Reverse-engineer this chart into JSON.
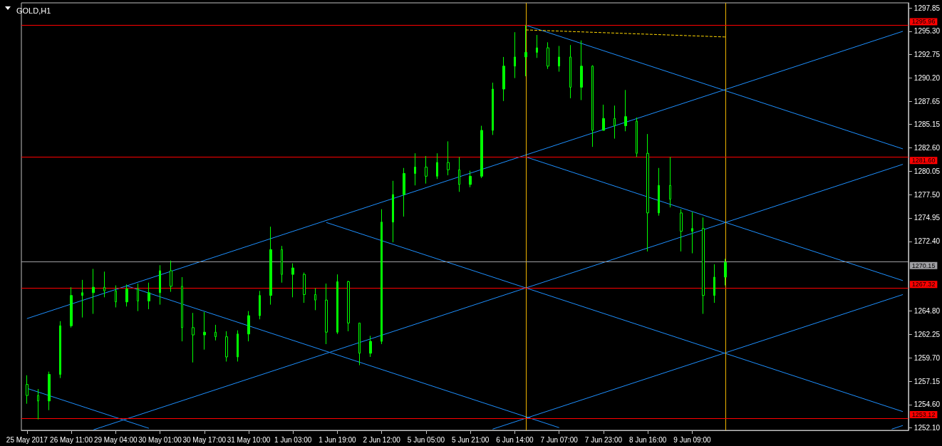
{
  "chart_data": {
    "type": "candlestick",
    "title": "GOLD,H1",
    "color": "#00ff00",
    "categories": [
      "25 May 2017",
      null,
      null,
      null,
      "26 May 11:00",
      null,
      null,
      null,
      "29 May 04:00",
      null,
      null,
      null,
      "30 May 01:00",
      null,
      null,
      null,
      "30 May 17:00",
      null,
      null,
      null,
      "31 May 10:00",
      null,
      null,
      null,
      "1 Jun 03:00",
      null,
      null,
      null,
      "1 Jun 19:00",
      null,
      null,
      null,
      "2 Jun 12:00",
      null,
      null,
      null,
      "5 Jun 05:00",
      null,
      null,
      null,
      "5 Jun 21:00",
      null,
      null,
      null,
      "6 Jun 14:00",
      null,
      null,
      null,
      "7 Jun 07:00",
      null,
      null,
      null,
      "7 Jun 23:00",
      null,
      null,
      null,
      "8 Jun 16:00",
      null,
      null,
      null,
      "9 Jun 09:00",
      null,
      null,
      null,
      null,
      null,
      null,
      null,
      null,
      null,
      null,
      null,
      null,
      null,
      null,
      null,
      null,
      null,
      null,
      null
    ],
    "ohlc": [
      [
        1256.8,
        1257.8,
        1254.7,
        1255.6
      ],
      [
        1255.6,
        1256.3,
        1253.0,
        1255.0
      ],
      [
        1255.0,
        1258.2,
        1254.0,
        1257.9
      ],
      [
        1257.9,
        1263.7,
        1257.5,
        1263.2
      ],
      [
        1263.2,
        1267.4,
        1263.0,
        1266.5
      ],
      [
        1266.5,
        1268.2,
        1264.1,
        1266.8
      ],
      [
        1266.8,
        1269.4,
        1264.5,
        1267.4
      ],
      [
        1267.4,
        1269.1,
        1266.3,
        1267.0
      ],
      [
        1267.0,
        1267.6,
        1265.2,
        1265.8
      ],
      [
        1265.8,
        1267.7,
        1265.3,
        1267.2
      ],
      [
        1267.2,
        1267.8,
        1264.8,
        1265.9
      ],
      [
        1265.9,
        1267.9,
        1265.0,
        1266.8
      ],
      [
        1266.8,
        1269.8,
        1265.5,
        1269.2
      ],
      [
        1269.2,
        1270.3,
        1266.9,
        1267.5
      ],
      [
        1267.5,
        1268.5,
        1261.5,
        1263.0
      ],
      [
        1263.0,
        1264.6,
        1259.2,
        1262.2
      ],
      [
        1262.2,
        1264.7,
        1260.6,
        1262.5
      ],
      [
        1262.5,
        1263.3,
        1261.6,
        1262.0
      ],
      [
        1262.0,
        1262.6,
        1259.3,
        1259.8
      ],
      [
        1259.8,
        1262.7,
        1259.3,
        1262.3
      ],
      [
        1262.3,
        1264.8,
        1261.5,
        1264.3
      ],
      [
        1264.3,
        1267.0,
        1263.9,
        1266.5
      ],
      [
        1266.5,
        1274.0,
        1265.5,
        1271.5
      ],
      [
        1271.5,
        1271.9,
        1267.9,
        1268.8
      ],
      [
        1268.8,
        1270.0,
        1266.3,
        1269.5
      ],
      [
        1268.8,
        1269.0,
        1265.7,
        1266.6
      ],
      [
        1266.6,
        1267.3,
        1264.9,
        1266.0
      ],
      [
        1266.0,
        1267.8,
        1261.2,
        1262.5
      ],
      [
        1262.5,
        1268.8,
        1262.3,
        1268.0
      ],
      [
        1268.0,
        1268.1,
        1262.6,
        1263.5
      ],
      [
        1263.5,
        1263.5,
        1258.9,
        1260.2
      ],
      [
        1260.2,
        1262.1,
        1259.8,
        1261.5
      ],
      [
        1261.5,
        1275.9,
        1261.2,
        1274.5
      ],
      [
        1274.5,
        1279.0,
        1272.3,
        1277.5
      ],
      [
        1277.5,
        1280.4,
        1275.1,
        1279.8
      ],
      [
        1279.8,
        1282.0,
        1278.5,
        1280.5
      ],
      [
        1280.5,
        1281.7,
        1278.7,
        1279.5
      ],
      [
        1279.5,
        1282.0,
        1279.2,
        1281.0
      ],
      [
        1281.0,
        1283.3,
        1279.6,
        1280.2
      ],
      [
        1280.2,
        1281.6,
        1277.8,
        1278.6
      ],
      [
        1278.6,
        1280.1,
        1278.3,
        1279.5
      ],
      [
        1279.5,
        1285.0,
        1279.3,
        1284.5
      ],
      [
        1284.5,
        1289.7,
        1284.0,
        1289.0
      ],
      [
        1289.0,
        1292.5,
        1287.7,
        1291.5
      ],
      [
        1291.5,
        1295.2,
        1290.2,
        1292.5
      ],
      [
        1292.5,
        1296.0,
        1290.4,
        1293.0
      ],
      [
        1293.0,
        1294.9,
        1292.4,
        1293.5
      ],
      [
        1293.5,
        1294.1,
        1291.2,
        1291.5
      ],
      [
        1291.5,
        1293.7,
        1290.9,
        1292.5
      ],
      [
        1292.5,
        1293.8,
        1288.0,
        1289.2
      ],
      [
        1289.2,
        1294.3,
        1287.8,
        1291.5
      ],
      [
        1291.5,
        1291.6,
        1282.7,
        1284.5
      ],
      [
        1284.5,
        1287.3,
        1284.5,
        1285.8
      ],
      [
        1285.8,
        1287.2,
        1283.6,
        1285.0
      ],
      [
        1285.0,
        1288.9,
        1284.4,
        1286.0
      ],
      [
        1285.5,
        1285.9,
        1281.6,
        1282.0
      ],
      [
        1282.0,
        1284.1,
        1271.3,
        1275.5
      ],
      [
        1275.5,
        1280.4,
        1275.2,
        1278.5
      ],
      [
        1278.5,
        1281.6,
        1276.1,
        1277.0
      ],
      [
        1275.5,
        1275.9,
        1271.3,
        1273.5
      ],
      [
        1273.5,
        1275.6,
        1271.1,
        1273.8
      ],
      [
        1273.8,
        1275.0,
        1264.5,
        1266.5
      ],
      [
        1266.5,
        1269.9,
        1265.7,
        1268.5
      ],
      [
        1268.5,
        1270.5,
        1267.6,
        1270.1
      ],
      null,
      null,
      null,
      null,
      null,
      null,
      null,
      null,
      null,
      null,
      null,
      null,
      null,
      null,
      null,
      null
    ],
    "series": [
      {
        "type": "line",
        "color": "#1e90ff",
        "values": [
          1263.98,
          null,
          null,
          null,
          null,
          null,
          null,
          null,
          null,
          null,
          null,
          null,
          null,
          null,
          null,
          null,
          null,
          null,
          null,
          null,
          null,
          null,
          null,
          null,
          null,
          null,
          null,
          null,
          null,
          null,
          null,
          null,
          null,
          null,
          null,
          null,
          null,
          null,
          null,
          null,
          null,
          null,
          null,
          null,
          null,
          null,
          null,
          null,
          null,
          null,
          null,
          null,
          null,
          null,
          null,
          null,
          null,
          null,
          null,
          null,
          null,
          null,
          null,
          null,
          null,
          null,
          null,
          null,
          null,
          null,
          null,
          null,
          null,
          null,
          null,
          null,
          null,
          null,
          null,
          1295.3
        ]
      },
      {
        "type": "line",
        "color": "#1e90ff",
        "values": [
          null,
          null,
          null,
          null,
          null,
          null,
          1251.86,
          null,
          null,
          null,
          null,
          null,
          null,
          null,
          null,
          null,
          null,
          null,
          null,
          null,
          null,
          null,
          null,
          null,
          null,
          null,
          null,
          null,
          null,
          null,
          null,
          null,
          null,
          null,
          null,
          null,
          null,
          null,
          null,
          null,
          null,
          null,
          null,
          null,
          null,
          null,
          null,
          null,
          null,
          null,
          null,
          null,
          null,
          null,
          null,
          null,
          null,
          null,
          null,
          null,
          null,
          null,
          null,
          null,
          null,
          null,
          null,
          null,
          null,
          null,
          null,
          null,
          null,
          null,
          null,
          null,
          null,
          null,
          null,
          1280.8
        ]
      },
      {
        "type": "line",
        "color": "#1e90ff",
        "values": [
          null,
          null,
          null,
          null,
          null,
          null,
          null,
          null,
          null,
          null,
          null,
          null,
          null,
          null,
          null,
          null,
          null,
          null,
          null,
          null,
          null,
          null,
          null,
          null,
          null,
          null,
          null,
          null,
          null,
          null,
          null,
          null,
          null,
          null,
          null,
          null,
          null,
          null,
          null,
          null,
          null,
          null,
          1251.93,
          null,
          null,
          null,
          null,
          null,
          null,
          null,
          null,
          null,
          null,
          null,
          null,
          null,
          null,
          null,
          null,
          null,
          null,
          null,
          null,
          null,
          null,
          null,
          null,
          null,
          null,
          null,
          null,
          null,
          null,
          null,
          null,
          null,
          null,
          null,
          null,
          1266.6
        ]
      },
      {
        "type": "line",
        "color": "#1e90ff",
        "values": [
          null,
          null,
          null,
          null,
          null,
          null,
          null,
          null,
          null,
          null,
          null,
          null,
          null,
          null,
          null,
          null,
          null,
          null,
          null,
          null,
          null,
          null,
          null,
          null,
          null,
          null,
          null,
          null,
          null,
          null,
          null,
          null,
          null,
          null,
          null,
          null,
          null,
          null,
          null,
          null,
          null,
          null,
          null,
          null,
          null,
          null,
          null,
          null,
          null,
          null,
          null,
          null,
          null,
          null,
          null,
          null,
          null,
          null,
          null,
          null,
          null,
          null,
          null,
          null,
          null,
          null,
          null,
          null,
          null,
          null,
          null,
          null,
          null,
          null,
          null,
          null,
          null,
          null,
          1251.93,
          1252.33
        ]
      },
      {
        "type": "line",
        "color": "#1e90ff",
        "values": [
          null,
          null,
          null,
          null,
          null,
          null,
          null,
          null,
          null,
          null,
          null,
          null,
          null,
          null,
          null,
          null,
          null,
          null,
          null,
          null,
          null,
          null,
          null,
          null,
          null,
          null,
          null,
          null,
          null,
          null,
          null,
          null,
          null,
          null,
          null,
          null,
          null,
          null,
          null,
          null,
          null,
          null,
          null,
          null,
          null,
          1295.96,
          null,
          null,
          null,
          null,
          null,
          null,
          null,
          null,
          null,
          null,
          null,
          null,
          null,
          null,
          null,
          null,
          null,
          null,
          null,
          null,
          null,
          null,
          null,
          null,
          null,
          null,
          null,
          null,
          null,
          null,
          null,
          null,
          null,
          1282.48
        ]
      },
      {
        "type": "line",
        "color": "#1e90ff",
        "values": [
          null,
          null,
          null,
          null,
          null,
          null,
          null,
          null,
          null,
          null,
          null,
          null,
          null,
          null,
          null,
          null,
          null,
          null,
          null,
          null,
          null,
          null,
          null,
          null,
          null,
          null,
          null,
          null,
          null,
          null,
          null,
          null,
          null,
          null,
          null,
          null,
          null,
          null,
          null,
          null,
          null,
          null,
          null,
          null,
          null,
          1281.6,
          null,
          null,
          null,
          null,
          null,
          null,
          null,
          null,
          null,
          null,
          null,
          null,
          null,
          null,
          null,
          null,
          null,
          null,
          null,
          null,
          null,
          null,
          null,
          null,
          null,
          null,
          null,
          null,
          null,
          null,
          null,
          null,
          null,
          1268.12
        ]
      },
      {
        "type": "line",
        "color": "#1e90ff",
        "values": [
          null,
          null,
          null,
          null,
          null,
          null,
          null,
          null,
          null,
          null,
          null,
          null,
          null,
          null,
          null,
          null,
          null,
          null,
          null,
          null,
          null,
          null,
          null,
          null,
          null,
          null,
          null,
          1274.46,
          null,
          null,
          null,
          null,
          null,
          null,
          null,
          null,
          null,
          null,
          null,
          null,
          null,
          null,
          null,
          null,
          null,
          null,
          null,
          null,
          null,
          null,
          null,
          null,
          null,
          null,
          null,
          null,
          null,
          null,
          null,
          null,
          null,
          null,
          null,
          null,
          null,
          null,
          null,
          null,
          null,
          null,
          null,
          null,
          null,
          null,
          null,
          null,
          null,
          null,
          null,
          1253.84
        ]
      },
      {
        "type": "line",
        "color": "#1e90ff",
        "values": [
          null,
          null,
          null,
          null,
          null,
          null,
          null,
          null,
          null,
          1267.55,
          null,
          null,
          null,
          null,
          null,
          null,
          null,
          null,
          null,
          null,
          null,
          null,
          null,
          null,
          null,
          null,
          null,
          null,
          null,
          null,
          null,
          null,
          null,
          null,
          null,
          null,
          null,
          null,
          null,
          null,
          null,
          null,
          null,
          null,
          null,
          null,
          null,
          null,
          1252.09,
          null,
          null,
          null,
          null,
          null,
          null,
          null,
          null,
          null,
          null,
          null,
          null,
          null,
          null,
          null,
          null,
          null,
          null,
          null,
          null,
          null,
          null,
          null,
          null,
          null,
          null,
          null,
          null,
          null,
          null,
          null
        ]
      },
      {
        "type": "line",
        "color": "#1e90ff",
        "values": [
          1256.38,
          null,
          null,
          null,
          null,
          null,
          null,
          null,
          null,
          null,
          null,
          1252.02,
          null,
          null,
          null,
          null,
          null,
          null,
          null,
          null,
          null,
          null,
          null,
          null,
          null,
          null,
          null,
          null,
          null,
          null,
          null,
          null,
          null,
          null,
          null,
          null,
          null,
          null,
          null,
          null,
          null,
          null,
          null,
          null,
          null,
          null,
          null,
          null,
          null,
          null,
          null,
          null,
          null,
          null,
          null,
          null,
          null,
          null,
          null,
          null,
          null,
          null,
          null,
          null,
          null,
          null,
          null,
          null,
          null,
          null,
          null,
          null,
          null,
          null,
          null,
          null,
          null,
          null,
          null,
          null
        ]
      },
      {
        "type": "line",
        "color": "#ffd700",
        "line_style": "dashed",
        "values": [
          null,
          null,
          null,
          null,
          null,
          null,
          null,
          null,
          null,
          null,
          null,
          null,
          null,
          null,
          null,
          null,
          null,
          null,
          null,
          null,
          null,
          null,
          null,
          null,
          null,
          null,
          null,
          null,
          null,
          null,
          null,
          null,
          null,
          null,
          null,
          null,
          null,
          null,
          null,
          null,
          null,
          null,
          null,
          null,
          null,
          1295.45,
          null,
          null,
          null,
          null,
          null,
          null,
          null,
          null,
          null,
          null,
          null,
          null,
          null,
          null,
          null,
          null,
          null,
          1294.68,
          null,
          null,
          null,
          null,
          null,
          null,
          null,
          null,
          null,
          null,
          null,
          null,
          null,
          null,
          null,
          null
        ]
      }
    ],
    "ylim": [
      1251.8,
      1298.4
    ],
    "yticks": [
      {
        "value": 1252.1,
        "label": "1252.10"
      },
      {
        "value": 1254.6,
        "label": "1254.60"
      },
      1257.15,
      {
        "value": 1259.7,
        "label": "1259.70"
      },
      1262.25,
      {
        "value": 1264.8,
        "label": "1264.80"
      },
      {
        "value": 1272.4,
        "label": "1272.40"
      },
      1274.95,
      {
        "value": 1277.5,
        "label": "1277.50"
      },
      1280.05,
      {
        "value": 1282.6,
        "label": "1282.60"
      },
      1285.15,
      1287.65,
      {
        "value": 1290.2,
        "label": "1290.20"
      },
      1292.75,
      {
        "value": 1295.3,
        "label": "1295.30"
      },
      1297.85
    ],
    "ref_lines": [
      {
        "axis": "y",
        "value": 1295.96,
        "label": "1295.96",
        "color": "#ff0000"
      },
      {
        "axis": "y",
        "value": 1281.6,
        "label": "1281.60",
        "color": "#ff0000"
      },
      {
        "axis": "y",
        "value": 1270.15,
        "label": "1270.15",
        "color": "#a0a0a4"
      },
      {
        "axis": "y",
        "value": 1267.32,
        "label": "1267.32",
        "color": "#ff0000"
      },
      {
        "axis": "y",
        "value": 1253.12,
        "label": "1253.12",
        "color": "#ff0000"
      }
    ]
  }
}
